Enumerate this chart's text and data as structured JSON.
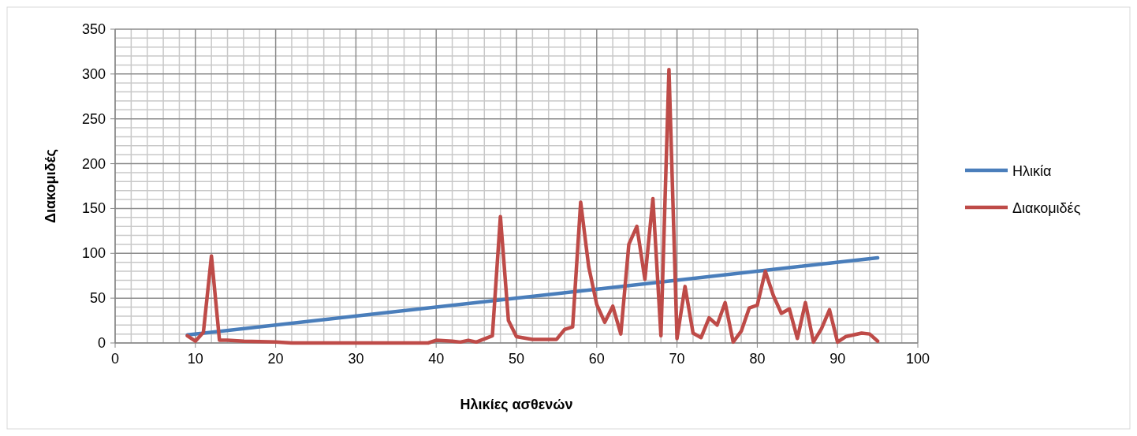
{
  "chart_data": {
    "type": "line",
    "xlabel": "Ηλικίες ασθενών",
    "ylabel": "Διακομιδές",
    "xlim": [
      0,
      100
    ],
    "xticks": [
      0,
      10,
      20,
      30,
      40,
      50,
      60,
      70,
      80,
      90,
      100
    ],
    "ylim": [
      0,
      350
    ],
    "yticks": [
      0,
      50,
      100,
      150,
      200,
      250,
      300,
      350
    ],
    "grid": true,
    "legend": "right",
    "marker": "none",
    "line_style": "solid",
    "series": [
      {
        "name": "Ηλικία",
        "color": "#4a7ebb",
        "x": [
          9,
          95
        ],
        "values": [
          9,
          95
        ]
      },
      {
        "name": "Διακομιδές",
        "color": "#be4b48",
        "x": [
          9,
          10,
          11,
          12,
          13,
          14,
          16,
          20,
          22,
          30,
          39,
          40,
          42,
          43,
          44,
          45,
          47,
          48,
          49,
          50,
          52,
          55,
          56,
          57,
          58,
          59,
          60,
          61,
          62,
          63,
          64,
          65,
          66,
          67,
          68,
          69,
          70,
          71,
          72,
          73,
          74,
          75,
          76,
          77,
          78,
          79,
          80,
          81,
          82,
          83,
          84,
          85,
          86,
          87,
          88,
          89,
          90,
          91,
          92,
          93,
          94,
          95
        ],
        "values": [
          8,
          2,
          12,
          97,
          3,
          3,
          2,
          1,
          0,
          0,
          0,
          3,
          2,
          1,
          3,
          1,
          8,
          141,
          25,
          7,
          4,
          4,
          15,
          18,
          157,
          85,
          43,
          23,
          41,
          10,
          110,
          130,
          71,
          161,
          8,
          305,
          5,
          63,
          11,
          6,
          28,
          20,
          45,
          1,
          13,
          39,
          42,
          80,
          53,
          33,
          38,
          5,
          45,
          1,
          16,
          37,
          1,
          7,
          9,
          11,
          10,
          2
        ]
      }
    ]
  }
}
